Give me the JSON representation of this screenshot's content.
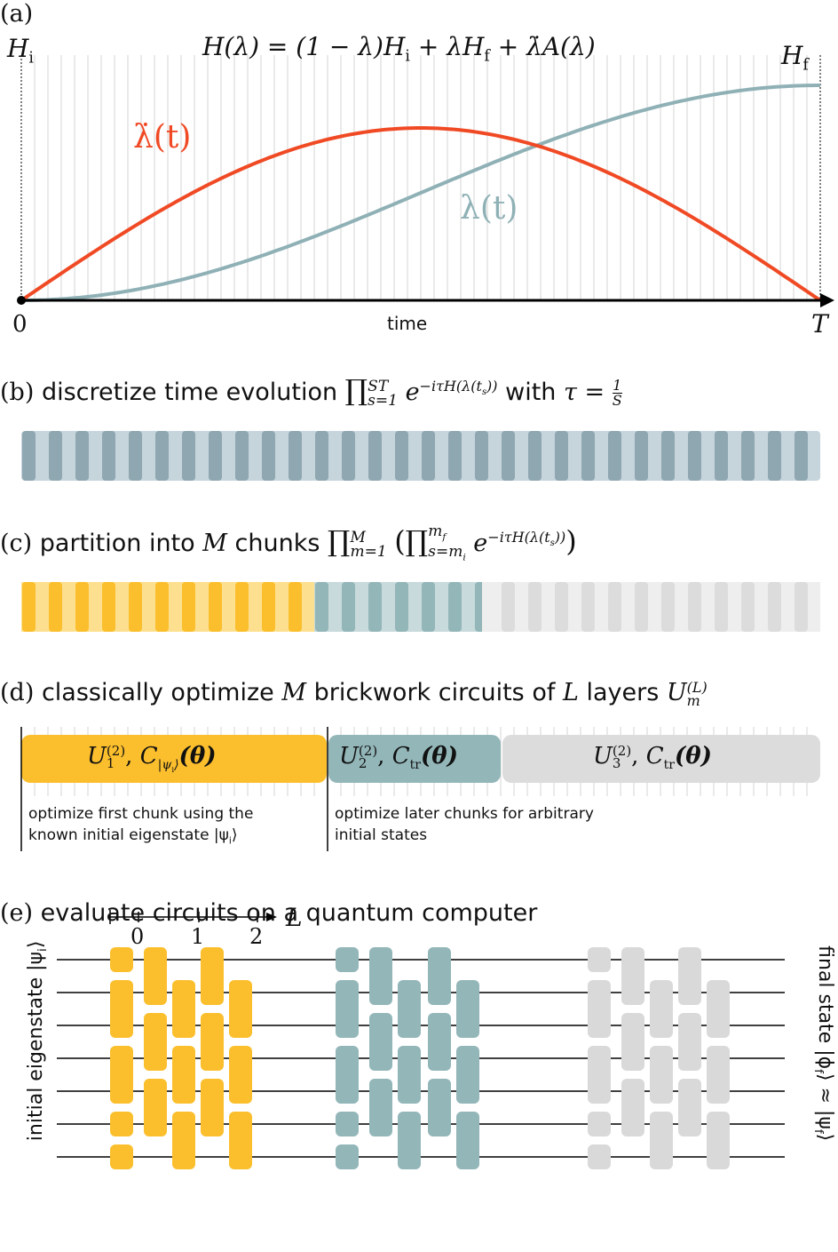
{
  "panel_a": {
    "label": "(a)",
    "h_initial": "H",
    "h_initial_sub": "i",
    "h_final": "H",
    "h_final_sub": "f",
    "formula": "H(λ) = (1 − λ)H",
    "formula_mid": "i",
    "formula_rest": " + λH",
    "formula_f": "f",
    "formula_end": " + λ̇A(λ)",
    "lambda_dot_label": "λ̇(t)",
    "lambda_label": "λ(t)",
    "x_start": "0",
    "x_end": "T",
    "x_axis_label": "time",
    "colors": {
      "lambda_dot": "#f04a25",
      "lambda": "#8fb1b6",
      "axis": "#000000"
    }
  },
  "panel_b": {
    "label": "(b)",
    "text": "discretize time evolution",
    "product": "∏",
    "product_sup": "ST",
    "product_sub": "s=1",
    "exp": "e",
    "exp_sup": "−iτH(λ(t",
    "exp_sup_sub": "s",
    "exp_sup_end": "))",
    "with": "with",
    "tau": "τ = ",
    "frac_num": "1",
    "frac_den": "S",
    "colors": {
      "dark": "#8fa7b1",
      "light": "#c6d4dc"
    }
  },
  "panel_c": {
    "label": "(c)",
    "text": "partition into",
    "M": "M",
    "chunks": "chunks",
    "product_sup": "M",
    "product_sub": "m=1",
    "inner_sup": "m",
    "inner_sup_sub": "f",
    "inner_sub": "s=m",
    "inner_sub_sub": "i",
    "exp_sup": "−iτH(λ(t",
    "exp_sup_sub": "s",
    "exp_sup_end": "))",
    "colors": {
      "yellow_dark": "#fbbf2d",
      "yellow_light": "#fde08f",
      "teal_dark": "#93b6b9",
      "teal_light": "#c8dadc",
      "gray_dark": "#dcdcdc",
      "gray_light": "#eeeeee"
    }
  },
  "panel_d": {
    "label": "(d)",
    "text": "classically optimize",
    "M": "M",
    "text2": "brickwork circuits of",
    "L": "L",
    "text3": "layers",
    "U": "U",
    "U_sup": "(L)",
    "U_sub": "m",
    "block1": {
      "U": "U",
      "sub": "1",
      "sup": "(2)",
      "C": "C",
      "C_sub": "|ψ",
      "C_sub_i": "i",
      "C_sub_end": "⟩",
      "theta": "(θ)"
    },
    "block2": {
      "U": "U",
      "sub": "2",
      "sup": "(2)",
      "C": "C",
      "C_sub": "tr",
      "theta": "(θ)"
    },
    "block3": {
      "U": "U",
      "sub": "3",
      "sup": "(2)",
      "C": "C",
      "C_sub": "tr",
      "theta": "(θ)"
    },
    "note1_line1": "optimize first chunk using the",
    "note1_line2": "known initial eigenstate |ψ",
    "note1_sub": "i",
    "note1_end": "⟩",
    "note2_line1": "optimize later chunks for arbitrary",
    "note2_line2": "initial states",
    "colors": {
      "yellow": "#fbbf2d",
      "teal": "#93b6b9",
      "gray": "#dcdcdc"
    }
  },
  "panel_e": {
    "label": "(e)",
    "text": "evaluate circuits on a quantum computer",
    "left_label": "initial eigenstate |ψ",
    "left_sub": "i",
    "left_end": "⟩",
    "right_label": "final state |ϕ",
    "right_sub": "f",
    "right_mid": "⟩ ≈ |ψ",
    "right_sub2": "f",
    "right_end": "⟩",
    "axis_ticks": [
      "0",
      "1",
      "2"
    ],
    "axis_label": "L",
    "colors": {
      "yellow": "#fbbf2d",
      "teal": "#93b6b9",
      "gray": "#d9d9d9"
    }
  }
}
